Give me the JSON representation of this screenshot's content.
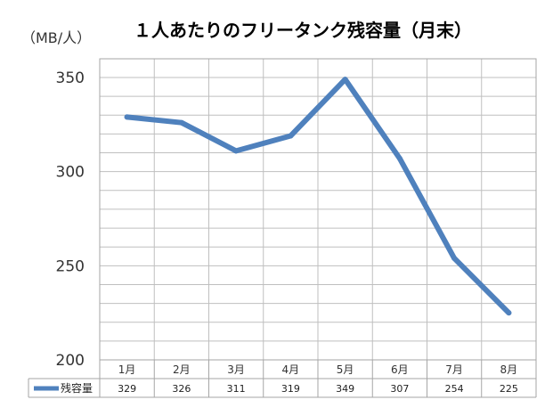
{
  "chart_data": {
    "type": "line",
    "title": "１人あたりのフリータンク残容量（月末）",
    "unit_label": "（MB/人）",
    "categories": [
      "1月",
      "2月",
      "3月",
      "4月",
      "5月",
      "6月",
      "7月",
      "8月"
    ],
    "series": [
      {
        "name": "残容量",
        "values": [
          329,
          326,
          311,
          319,
          349,
          307,
          254,
          225
        ],
        "color": "#4f81bd"
      }
    ],
    "ylim": [
      200,
      350
    ],
    "yticks": [
      "200",
      "250",
      "300",
      "350"
    ],
    "grid": true,
    "data_table": true
  }
}
